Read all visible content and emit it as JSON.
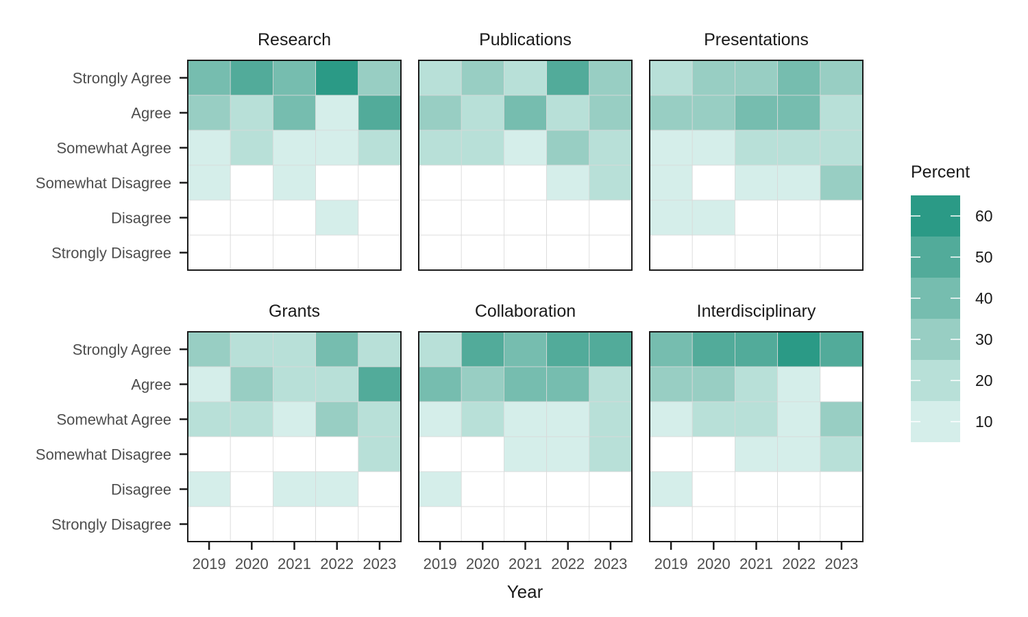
{
  "chart_data": {
    "type": "heatmap",
    "x_label": "Year",
    "years": [
      "2019",
      "2020",
      "2021",
      "2022",
      "2023"
    ],
    "responses": [
      "Strongly Agree",
      "Agree",
      "Somewhat Agree",
      "Somewhat Disagree",
      "Disagree",
      "Strongly Disagree"
    ],
    "legend": {
      "title": "Percent",
      "ticks": [
        "60",
        "50",
        "40",
        "30",
        "20",
        "10"
      ],
      "bins": [
        {
          "min": 55,
          "max": 65,
          "color": "#2b9a86"
        },
        {
          "min": 45,
          "max": 55,
          "color": "#52ab9a"
        },
        {
          "min": 35,
          "max": 45,
          "color": "#76bdaf"
        },
        {
          "min": 25,
          "max": 35,
          "color": "#98cec3"
        },
        {
          "min": 15,
          "max": 25,
          "color": "#b8e0d8"
        },
        {
          "min": 5,
          "max": 15,
          "color": "#d5eeea"
        }
      ],
      "empty_color": "#ffffff"
    },
    "facets": [
      {
        "title": "Research",
        "values": [
          [
            40,
            50,
            40,
            60,
            30
          ],
          [
            30,
            20,
            40,
            10,
            50
          ],
          [
            10,
            20,
            10,
            10,
            20
          ],
          [
            10,
            0,
            10,
            0,
            0
          ],
          [
            0,
            0,
            0,
            10,
            0
          ],
          [
            0,
            0,
            0,
            0,
            0
          ]
        ]
      },
      {
        "title": "Publications",
        "values": [
          [
            20,
            30,
            20,
            50,
            30
          ],
          [
            30,
            20,
            40,
            20,
            30
          ],
          [
            20,
            20,
            10,
            30,
            20
          ],
          [
            0,
            0,
            0,
            10,
            20
          ],
          [
            0,
            0,
            0,
            0,
            0
          ],
          [
            0,
            0,
            0,
            0,
            0
          ]
        ]
      },
      {
        "title": "Presentations",
        "values": [
          [
            20,
            30,
            30,
            40,
            30
          ],
          [
            30,
            30,
            40,
            40,
            20
          ],
          [
            10,
            10,
            20,
            20,
            20
          ],
          [
            10,
            0,
            10,
            10,
            30
          ],
          [
            10,
            10,
            0,
            0,
            0
          ],
          [
            0,
            0,
            0,
            0,
            0
          ]
        ]
      },
      {
        "title": "Grants",
        "values": [
          [
            30,
            20,
            20,
            40,
            20
          ],
          [
            10,
            30,
            20,
            20,
            50
          ],
          [
            20,
            20,
            10,
            30,
            20
          ],
          [
            0,
            0,
            0,
            0,
            20
          ],
          [
            10,
            0,
            10,
            10,
            0
          ],
          [
            0,
            0,
            0,
            0,
            0
          ]
        ]
      },
      {
        "title": "Collaboration",
        "values": [
          [
            20,
            50,
            40,
            50,
            50
          ],
          [
            40,
            30,
            40,
            40,
            20
          ],
          [
            10,
            20,
            10,
            10,
            20
          ],
          [
            0,
            0,
            10,
            10,
            20
          ],
          [
            10,
            0,
            0,
            0,
            0
          ],
          [
            0,
            0,
            0,
            0,
            0
          ]
        ]
      },
      {
        "title": "Interdisciplinary",
        "values": [
          [
            40,
            50,
            50,
            60,
            50
          ],
          [
            30,
            30,
            20,
            10,
            0
          ],
          [
            10,
            20,
            20,
            10,
            30
          ],
          [
            0,
            0,
            10,
            10,
            20
          ],
          [
            10,
            0,
            0,
            0,
            0
          ],
          [
            0,
            0,
            0,
            0,
            0
          ]
        ]
      }
    ]
  }
}
